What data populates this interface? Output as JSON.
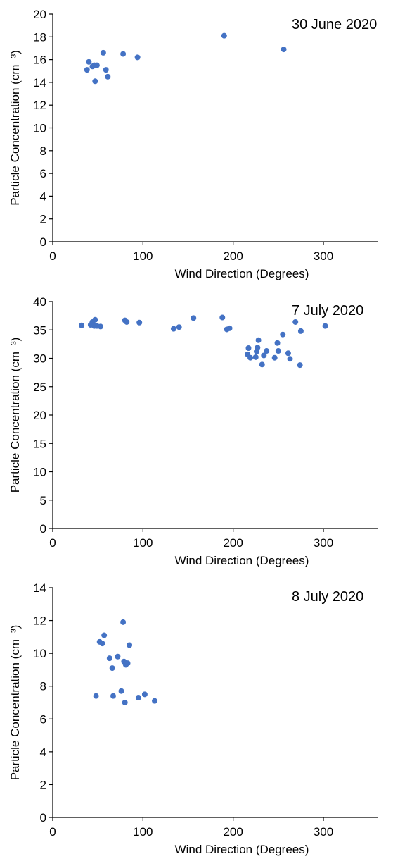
{
  "colors": {
    "marker": "#4472C4",
    "axis": "#000000",
    "background": "#ffffff"
  },
  "chart_data": [
    {
      "type": "scatter",
      "title": "30 June 2020",
      "xlabel": "Wind Direction (Degrees)",
      "ylabel": "Particle Concentration (cm⁻³)",
      "xlim": [
        0,
        360
      ],
      "ylim": [
        0,
        20
      ],
      "xticks": [
        0,
        100,
        200,
        300
      ],
      "yticks": [
        0,
        2,
        4,
        6,
        8,
        10,
        12,
        14,
        16,
        18,
        20
      ],
      "grid": false,
      "legend": "none",
      "series": [
        {
          "x": [
            38,
            40,
            44,
            46,
            47,
            49,
            56,
            59,
            61,
            78,
            94,
            190,
            256
          ],
          "y": [
            15.1,
            15.8,
            15.4,
            15.5,
            14.1,
            15.5,
            16.6,
            15.1,
            14.5,
            16.5,
            16.2,
            18.1,
            16.9
          ]
        }
      ]
    },
    {
      "type": "scatter",
      "title": "7 July 2020",
      "xlabel": "Wind Direction (Degrees)",
      "ylabel": "Particle Concentration (cm⁻³)",
      "xlim": [
        0,
        360
      ],
      "ylim": [
        0,
        40
      ],
      "xticks": [
        0,
        100,
        200,
        300
      ],
      "yticks": [
        0,
        5,
        10,
        15,
        20,
        25,
        30,
        35,
        40
      ],
      "grid": false,
      "legend": "none",
      "series": [
        {
          "x": [
            32,
            42,
            44,
            46,
            47,
            49,
            53,
            80,
            82,
            96,
            134,
            140,
            156,
            188,
            193,
            196,
            216,
            217,
            219,
            225,
            226,
            227,
            228,
            232,
            234,
            237,
            246,
            249,
            250,
            255,
            261,
            263,
            269,
            274,
            275,
            302
          ],
          "y": [
            35.8,
            35.9,
            36.4,
            35.7,
            36.8,
            35.7,
            35.6,
            36.7,
            36.4,
            36.3,
            35.2,
            35.5,
            37.1,
            37.2,
            35.1,
            35.3,
            30.7,
            31.8,
            30.1,
            30.2,
            31.2,
            31.9,
            33.2,
            28.9,
            30.5,
            31.3,
            30.1,
            32.7,
            31.3,
            34.2,
            30.9,
            29.9,
            36.4,
            28.8,
            34.8,
            35.7
          ]
        }
      ]
    },
    {
      "type": "scatter",
      "title": "8 July 2020",
      "xlabel": "Wind Direction (Degrees)",
      "ylabel": "Particle Concentration (cm⁻³)",
      "xlim": [
        0,
        360
      ],
      "ylim": [
        0,
        14
      ],
      "xticks": [
        0,
        100,
        200,
        300
      ],
      "yticks": [
        0,
        2,
        4,
        6,
        8,
        10,
        12,
        14
      ],
      "grid": false,
      "legend": "none",
      "series": [
        {
          "x": [
            48,
            52,
            55,
            57,
            63,
            66,
            67,
            72,
            76,
            78,
            79,
            80,
            81,
            83,
            85,
            95,
            102,
            113
          ],
          "y": [
            7.4,
            10.7,
            10.6,
            11.1,
            9.7,
            9.1,
            7.4,
            9.8,
            7.7,
            11.9,
            9.5,
            7.0,
            9.3,
            9.4,
            10.5,
            7.3,
            7.5,
            7.1
          ]
        }
      ]
    }
  ]
}
